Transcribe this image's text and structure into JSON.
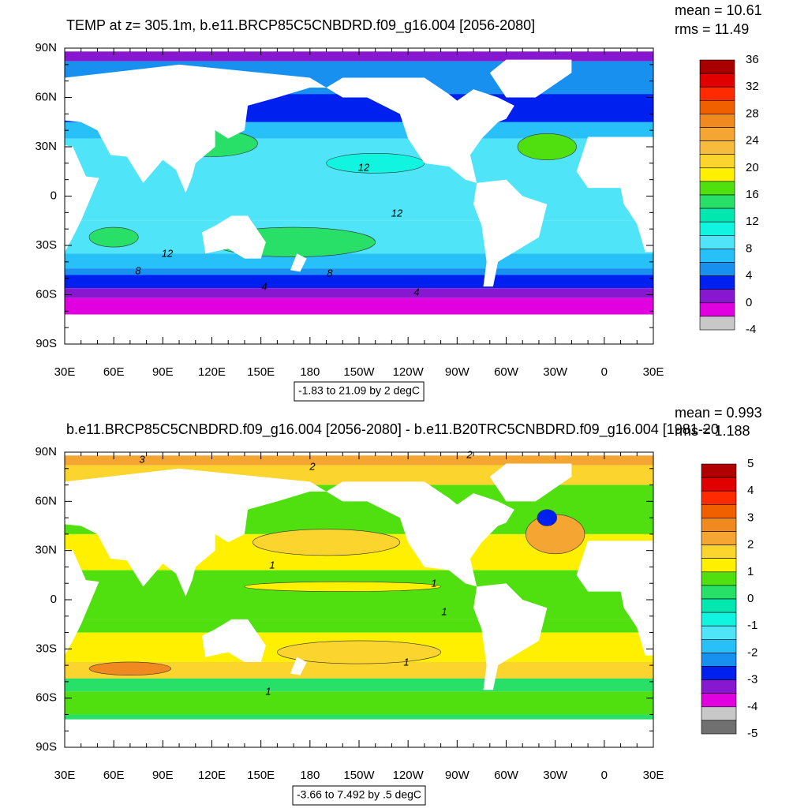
{
  "panels": [
    {
      "title": "TEMP at z= 305.1m, b.e11.BRCP85C5CNBDRD.f09_g16.004 [2056-2080]",
      "mean": "mean = 10.61",
      "rms": "rms = 11.49",
      "lat_labels": [
        "90N",
        "60N",
        "30N",
        "0",
        "30S",
        "60S",
        "90S"
      ],
      "lon_labels": [
        "30E",
        "60E",
        "90E",
        "120E",
        "150E",
        "180",
        "150W",
        "120W",
        "90W",
        "60W",
        "30W",
        "0",
        "30E"
      ],
      "contour_labels": [
        "12",
        "12",
        "12",
        "8",
        "8",
        "4",
        "4"
      ],
      "info": "-1.83 to 21.09 by 2 degC",
      "colorbar": {
        "labels": [
          36,
          32,
          28,
          24,
          20,
          16,
          12,
          8,
          4,
          0,
          -4
        ],
        "colors": [
          "#a80000",
          "#e00000",
          "#ff2a00",
          "#f06000",
          "#f08a20",
          "#f5a532",
          "#f8bc3c",
          "#fcd42e",
          "#fff000",
          "#50e010",
          "#28e068",
          "#00e8b0",
          "#10f4e0",
          "#50e4f8",
          "#28c0f8",
          "#1890f0",
          "#0020f0",
          "#8818d0",
          "#e000e0",
          "#c8c8c8"
        ]
      }
    },
    {
      "title": "b.e11.BRCP85C5CNBDRD.f09_g16.004 [2056-2080] - b.e11.B20TRC5CNBDRD.f09_g16.004 [1981-20",
      "mean": "mean = 0.993",
      "rms": "rms = 1.188",
      "lat_labels": [
        "90N",
        "60N",
        "30N",
        "0",
        "30S",
        "60S",
        "90S"
      ],
      "lon_labels": [
        "30E",
        "60E",
        "90E",
        "120E",
        "150E",
        "180",
        "150W",
        "120W",
        "90W",
        "60W",
        "30W",
        "0",
        "30E"
      ],
      "contour_labels": [
        "3",
        "2",
        "2",
        "1",
        "1",
        "1",
        "1",
        "1"
      ],
      "info": "-3.66 to 7.492 by .5 degC",
      "colorbar": {
        "labels": [
          5,
          4,
          3,
          2,
          1,
          0,
          -1,
          -2,
          -3,
          -4,
          -5
        ],
        "colors": [
          "#b00000",
          "#e00000",
          "#ff2a00",
          "#f06000",
          "#f08a20",
          "#f5a532",
          "#fcd42e",
          "#fff000",
          "#50e010",
          "#28e068",
          "#00e8b0",
          "#10f4e0",
          "#50e4f8",
          "#28c0f8",
          "#1890f0",
          "#0020f0",
          "#8818d0",
          "#e000e0",
          "#c8c8c8",
          "#707070"
        ]
      }
    }
  ]
}
